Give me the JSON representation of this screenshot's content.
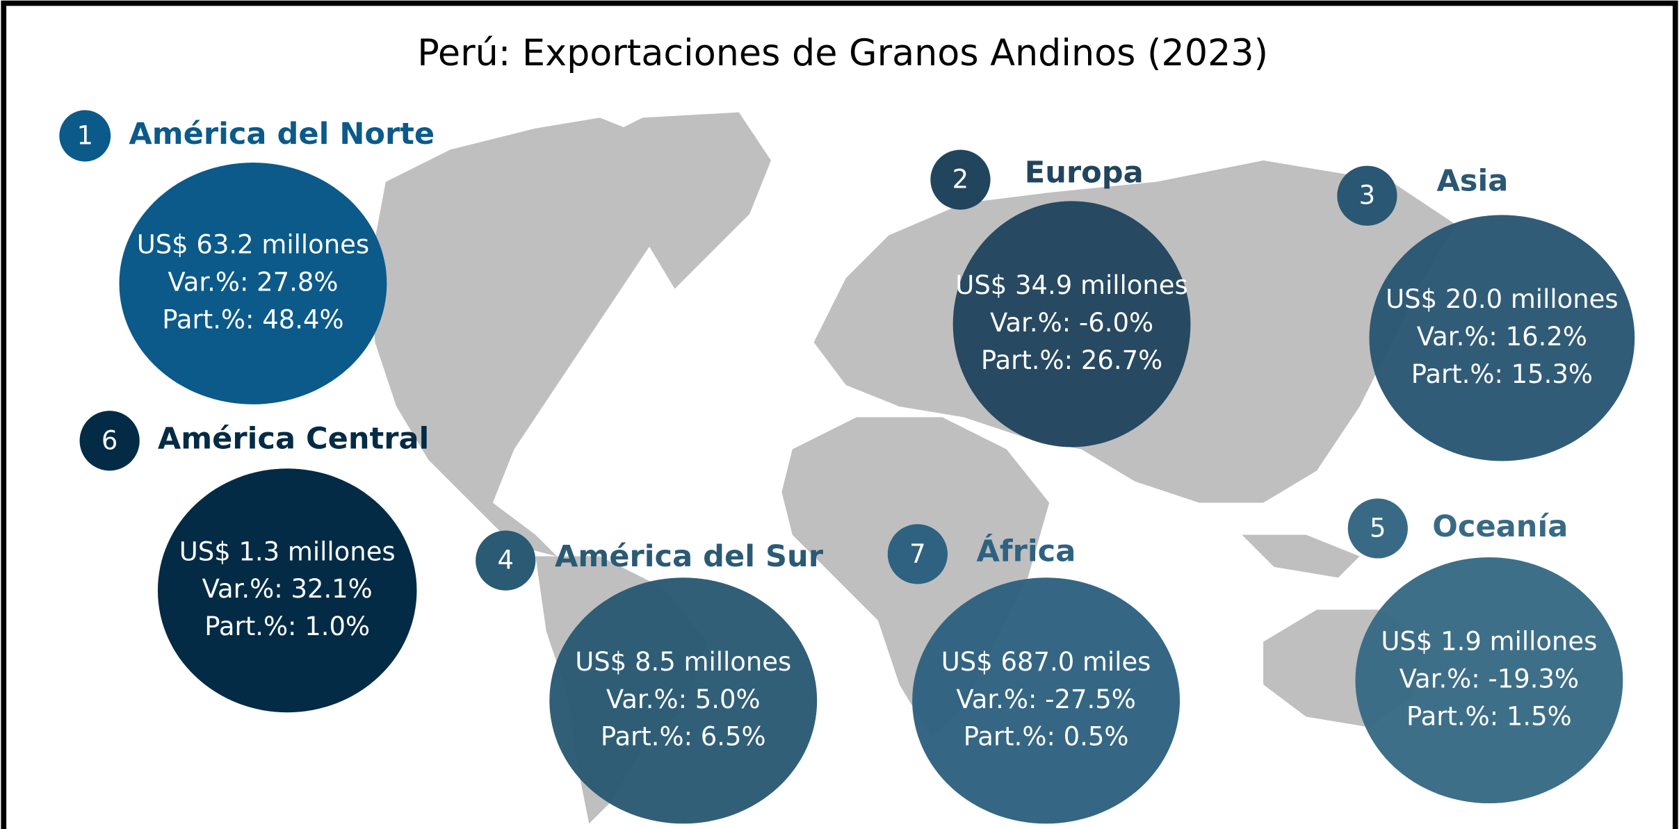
{
  "title": "Perú: Exportaciones de Granos Andinos (2023)",
  "regions": [
    {
      "number": "1",
      "name": "América del Norte",
      "value": "US$ 63.2 millones",
      "var": "Var.%: 27.8%",
      "part": "Part.%: 48.4%",
      "color": "#0b5a8a"
    },
    {
      "number": "2",
      "name": "Europa",
      "value": "US$ 34.9 millones",
      "var": "Var.%: -6.0%",
      "part": "Part.%: 26.7%",
      "color": "#22455e"
    },
    {
      "number": "3",
      "name": "Asia",
      "value": "US$ 20.0 millones",
      "var": "Var.%: 16.2%",
      "part": "Part.%: 15.3%",
      "color": "#2a5774"
    },
    {
      "number": "6",
      "name": "América Central",
      "value": "US$ 1.3 millones",
      "var": "Var.%: 32.1%",
      "part": "Part.%: 1.0%",
      "color": "#042b45"
    },
    {
      "number": "4",
      "name": "América del Sur",
      "value": "US$ 8.5 millones",
      "var": "Var.%: 5.0%",
      "part": "Part.%: 6.5%",
      "color": "#2a5a74"
    },
    {
      "number": "7",
      "name": "África",
      "value": "US$ 687.0 miles",
      "var": "Var.%: -27.5%",
      "part": "Part.%: 0.5%",
      "color": "#2e6280"
    },
    {
      "number": "5",
      "name": "Oceanía",
      "value": "US$ 1.9 millones",
      "var": "Var.%: -19.3%",
      "part": "Part.%: 1.5%",
      "color": "#386a85"
    }
  ]
}
